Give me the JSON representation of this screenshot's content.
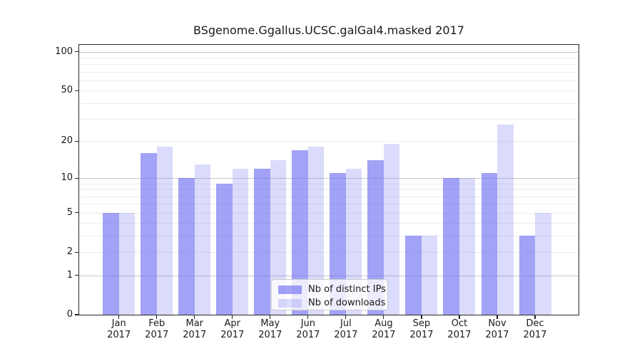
{
  "chart_data": {
    "type": "bar",
    "title": "BSgenome.Ggallus.UCSC.galGal4.masked 2017",
    "x_year": "2017",
    "categories": [
      "Jan",
      "Feb",
      "Mar",
      "Apr",
      "May",
      "Jun",
      "Jul",
      "Aug",
      "Sep",
      "Oct",
      "Nov",
      "Dec"
    ],
    "series": [
      {
        "name": "Nb of distinct IPs",
        "color": "rgba(105,105,240,0.62)",
        "values": [
          5,
          16,
          10,
          9,
          12,
          17,
          11,
          14,
          3,
          10,
          11,
          3
        ]
      },
      {
        "name": "Nb of downloads",
        "color": "rgba(105,105,240,0.24)",
        "values": [
          5,
          18,
          13,
          12,
          14,
          18,
          12,
          19,
          3,
          10,
          27,
          5
        ]
      }
    ],
    "yscale": "log1p",
    "ylim": [
      0,
      115
    ],
    "yticks": [
      0,
      1,
      2,
      5,
      10,
      20,
      50,
      100
    ],
    "grid_major": [
      1,
      10,
      100
    ],
    "grid_minor": [
      2,
      3,
      4,
      5,
      6,
      7,
      8,
      9,
      20,
      30,
      40,
      50,
      60,
      70,
      80,
      90
    ],
    "grid_color_major": "#c8c8c8",
    "grid_color_minor": "#ececec",
    "axis_color": "#262626",
    "legend_position": "lower center",
    "grid": "on"
  }
}
